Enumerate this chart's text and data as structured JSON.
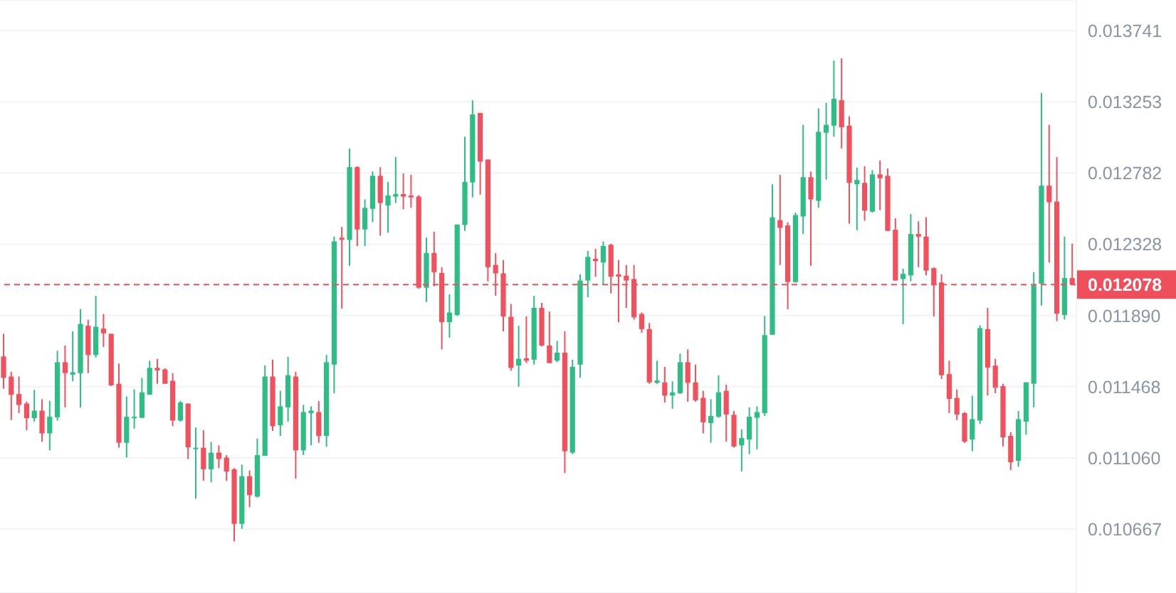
{
  "chart_data": {
    "type": "candlestick",
    "log": true,
    "grid": "y",
    "tick_labels": "y",
    "categories": [
      null,
      null,
      null,
      null,
      null,
      null,
      null,
      null,
      null,
      null,
      null,
      null,
      null,
      null,
      null,
      null,
      null,
      null,
      null,
      null,
      null,
      null,
      null,
      null,
      null,
      null,
      null,
      null,
      null,
      null,
      null,
      null,
      null,
      null,
      null,
      null,
      null,
      null,
      null,
      null,
      null,
      null,
      null,
      null,
      null,
      null,
      null,
      null,
      null,
      null,
      null,
      null,
      null,
      null,
      null,
      null,
      null,
      null,
      null,
      null,
      null,
      null,
      null,
      null,
      null,
      null,
      null,
      null,
      null,
      null,
      null,
      null,
      null,
      null,
      null,
      null,
      null,
      null,
      null,
      null,
      null,
      null,
      null,
      null,
      null,
      null,
      null,
      null,
      null,
      null,
      null,
      null,
      null,
      null,
      null,
      null,
      null,
      null,
      null,
      null,
      null,
      null,
      null,
      null,
      null,
      null,
      null,
      null,
      null,
      null,
      null,
      null,
      null,
      null,
      null,
      null,
      null,
      null,
      null,
      null,
      null,
      null,
      null,
      null,
      null,
      null,
      null,
      null,
      null,
      null,
      null,
      null,
      null,
      null,
      null,
      null,
      null,
      null,
      null,
      null
    ],
    "ylim": [
      0.010327,
      0.013956
    ],
    "yticks": [
      0.010667,
      {
        "value": 0.01106,
        "label": "0.011060"
      },
      0.011468,
      {
        "value": 0.01189,
        "label": "0.011890"
      },
      0.012328,
      0.012782,
      0.013253,
      0.013741
    ],
    "ref_lines": [
      {
        "axis": "y",
        "value": 0.012078,
        "label": "0.012078",
        "color": "#ef4f5a",
        "line_style": "dashed"
      }
    ],
    "ohlc": [
      [
        0.011645,
        0.01178,
        0.011457,
        0.011519
      ],
      [
        0.011527,
        0.011555,
        0.011275,
        0.011421
      ],
      [
        0.011425,
        0.011527,
        0.011315,
        0.011362
      ],
      [
        0.01137,
        0.011381,
        0.011217,
        0.011286
      ],
      [
        0.011286,
        0.011449,
        0.011266,
        0.011329
      ],
      [
        0.011329,
        0.011395,
        0.011152,
        0.011199
      ],
      [
        0.011199,
        0.011386,
        0.011103,
        0.011294
      ],
      [
        0.011291,
        0.011679,
        0.011272,
        0.011611
      ],
      [
        0.011611,
        0.01171,
        0.011348,
        0.011547
      ],
      [
        0.011538,
        0.011795,
        0.011499,
        0.011552
      ],
      [
        0.011547,
        0.011928,
        0.011348,
        0.011839
      ],
      [
        0.011828,
        0.011865,
        0.011547,
        0.011654
      ],
      [
        0.011654,
        0.01201,
        0.011639,
        0.011822
      ],
      [
        0.011811,
        0.011899,
        0.011702,
        0.011783
      ],
      [
        0.01178,
        0.01178,
        0.011471,
        0.011476
      ],
      [
        0.011485,
        0.011603,
        0.011118,
        0.011146
      ],
      [
        0.011146,
        0.011411,
        0.011063,
        0.011294
      ],
      [
        0.011288,
        0.011452,
        0.011226,
        0.011294
      ],
      [
        0.011288,
        0.011519,
        0.011286,
        0.011435
      ],
      [
        0.011421,
        0.01162,
        0.011421,
        0.011578
      ],
      [
        0.011578,
        0.011631,
        0.011485,
        0.011563
      ],
      [
        0.011569,
        0.011575,
        0.011485,
        0.011485
      ],
      [
        0.011502,
        0.011547,
        0.01124,
        0.011272
      ],
      [
        0.011272,
        0.011386,
        0.011266,
        0.011376
      ],
      [
        0.01137,
        0.01137,
        0.011054,
        0.01112
      ],
      [
        0.011111,
        0.011232,
        0.010834,
        0.011118
      ],
      [
        0.011118,
        0.011217,
        0.010932,
        0.010997
      ],
      [
        0.010997,
        0.01115,
        0.010924,
        0.01109
      ],
      [
        0.01109,
        0.011131,
        0.011003,
        0.011054
      ],
      [
        0.011062,
        0.011076,
        0.010932,
        0.010984
      ],
      [
        0.010997,
        0.011003,
        0.010601,
        0.010696
      ],
      [
        0.010696,
        0.011023,
        0.010669,
        0.010958
      ],
      [
        0.010958,
        0.010989,
        0.010787,
        0.010853
      ],
      [
        0.010845,
        0.011169,
        0.01084,
        0.011076
      ],
      [
        0.011072,
        0.011592,
        0.011072,
        0.011527
      ],
      [
        0.011527,
        0.011626,
        0.011213,
        0.01124
      ],
      [
        0.011245,
        0.011444,
        0.011185,
        0.011354
      ],
      [
        0.011348,
        0.011643,
        0.011266,
        0.011535
      ],
      [
        0.011527,
        0.011555,
        0.010944,
        0.011103
      ],
      [
        0.011103,
        0.011362,
        0.011076,
        0.011321
      ],
      [
        0.011315,
        0.011354,
        0.011131,
        0.011329
      ],
      [
        0.011321,
        0.011384,
        0.011146,
        0.011185
      ],
      [
        0.011185,
        0.011654,
        0.011123,
        0.011611
      ],
      [
        0.011597,
        0.012376,
        0.01143,
        0.012346
      ],
      [
        0.012369,
        0.012437,
        0.011931,
        0.012357
      ],
      [
        0.012355,
        0.012942,
        0.012194,
        0.01282
      ],
      [
        0.01282,
        0.012826,
        0.012317,
        0.012421
      ],
      [
        0.012421,
        0.012612,
        0.012317,
        0.012558
      ],
      [
        0.012552,
        0.012792,
        0.012467,
        0.012764
      ],
      [
        0.012764,
        0.01282,
        0.012382,
        0.012589
      ],
      [
        0.012573,
        0.012725,
        0.012401,
        0.012637
      ],
      [
        0.01263,
        0.012886,
        0.012589,
        0.012646
      ],
      [
        0.012646,
        0.012779,
        0.012549,
        0.01263
      ],
      [
        0.012637,
        0.01277,
        0.012558,
        0.012625
      ],
      [
        0.01263,
        0.012639,
        0.012053,
        0.012059
      ],
      [
        0.012059,
        0.012369,
        0.011972,
        0.012273
      ],
      [
        0.012273,
        0.012406,
        0.012068,
        0.012155
      ],
      [
        0.01215,
        0.012185,
        0.011687,
        0.01185
      ],
      [
        0.01185,
        0.012019,
        0.011757,
        0.011908
      ],
      [
        0.011893,
        0.012452,
        0.011887,
        0.012452
      ],
      [
        0.012449,
        0.01302,
        0.012412,
        0.012725
      ],
      [
        0.012721,
        0.013263,
        0.012625,
        0.013168
      ],
      [
        0.013178,
        0.013178,
        0.012643,
        0.012857
      ],
      [
        0.01287,
        0.01287,
        0.012098,
        0.012185
      ],
      [
        0.012199,
        0.012273,
        0.01201,
        0.012147
      ],
      [
        0.012147,
        0.012229,
        0.011795,
        0.011884
      ],
      [
        0.011882,
        0.01196,
        0.011561,
        0.011578
      ],
      [
        0.011592,
        0.011828,
        0.011468,
        0.011631
      ],
      [
        0.011634,
        0.011884,
        0.011606,
        0.01162
      ],
      [
        0.011626,
        0.01201,
        0.011597,
        0.011936
      ],
      [
        0.011936,
        0.011966,
        0.011704,
        0.01171
      ],
      [
        0.01171,
        0.011914,
        0.011606,
        0.011606
      ],
      [
        0.01162,
        0.011738,
        0.011611,
        0.011668
      ],
      [
        0.011668,
        0.011795,
        0.010976,
        0.011098
      ],
      [
        0.01109,
        0.011626,
        0.011082,
        0.011584
      ],
      [
        0.011597,
        0.012141,
        0.011521,
        0.012103
      ],
      [
        0.012103,
        0.012287,
        0.012001,
        0.012249
      ],
      [
        0.012238,
        0.0123,
        0.012127,
        0.012223
      ],
      [
        0.012214,
        0.012346,
        0.012077,
        0.012317
      ],
      [
        0.012325,
        0.012331,
        0.012024,
        0.012127
      ],
      [
        0.012141,
        0.012229,
        0.01185,
        0.012127
      ],
      [
        0.012133,
        0.012199,
        0.011936,
        0.012103
      ],
      [
        0.012112,
        0.012199,
        0.011865,
        0.011879
      ],
      [
        0.011899,
        0.011908,
        0.011786,
        0.011808
      ],
      [
        0.011808,
        0.011845,
        0.011485,
        0.011493
      ],
      [
        0.01149,
        0.01162,
        0.011485,
        0.011504
      ],
      [
        0.011493,
        0.011584,
        0.011376,
        0.011416
      ],
      [
        0.011416,
        0.011499,
        0.01134,
        0.011435
      ],
      [
        0.01143,
        0.011662,
        0.011425,
        0.011611
      ],
      [
        0.011611,
        0.011687,
        0.011381,
        0.01149
      ],
      [
        0.011493,
        0.011597,
        0.011381,
        0.011389
      ],
      [
        0.011403,
        0.011444,
        0.011199,
        0.011262
      ],
      [
        0.011258,
        0.011395,
        0.011146,
        0.011299
      ],
      [
        0.011294,
        0.011535,
        0.011288,
        0.011435
      ],
      [
        0.011444,
        0.011479,
        0.011152,
        0.011307
      ],
      [
        0.011305,
        0.011327,
        0.011118,
        0.011125
      ],
      [
        0.011131,
        0.011221,
        0.010984,
        0.011172
      ],
      [
        0.011164,
        0.011348,
        0.011082,
        0.011294
      ],
      [
        0.011288,
        0.011354,
        0.011109,
        0.011321
      ],
      [
        0.011315,
        0.011887,
        0.011299,
        0.011772
      ],
      [
        0.011774,
        0.012709,
        0.011774,
        0.012498
      ],
      [
        0.01248,
        0.01277,
        0.012199,
        0.012431
      ],
      [
        0.012446,
        0.012467,
        0.011928,
        0.012094
      ],
      [
        0.012094,
        0.012528,
        0.012089,
        0.012512
      ],
      [
        0.012503,
        0.013099,
        0.012392,
        0.012755
      ],
      [
        0.012755,
        0.012792,
        0.012194,
        0.012612
      ],
      [
        0.012603,
        0.013209,
        0.012558,
        0.013052
      ],
      [
        0.013046,
        0.013246,
        0.012739,
        0.013099
      ],
      [
        0.013093,
        0.013533,
        0.01302,
        0.013273
      ],
      [
        0.013263,
        0.013549,
        0.012942,
        0.013083
      ],
      [
        0.013093,
        0.013156,
        0.012458,
        0.012718
      ],
      [
        0.012709,
        0.012818,
        0.012416,
        0.012737
      ],
      [
        0.012718,
        0.012826,
        0.012476,
        0.01254
      ],
      [
        0.012534,
        0.012801,
        0.012528,
        0.012773
      ],
      [
        0.012773,
        0.012864,
        0.012543,
        0.012748
      ],
      [
        0.012764,
        0.012811,
        0.012412,
        0.012412
      ],
      [
        0.012419,
        0.012491,
        0.012103,
        0.012103
      ],
      [
        0.012112,
        0.012176,
        0.011837,
        0.012144
      ],
      [
        0.012135,
        0.012519,
        0.012098,
        0.012392
      ],
      [
        0.012392,
        0.012473,
        0.012185,
        0.012376
      ],
      [
        0.012376,
        0.012498,
        0.012135,
        0.012164
      ],
      [
        0.012179,
        0.012185,
        0.011884,
        0.012077
      ],
      [
        0.012091,
        0.012141,
        0.011513,
        0.011535
      ],
      [
        0.011541,
        0.01162,
        0.011315,
        0.011397
      ],
      [
        0.011403,
        0.011452,
        0.011275,
        0.011307
      ],
      [
        0.011315,
        0.011321,
        0.011146,
        0.011152
      ],
      [
        0.011164,
        0.011416,
        0.011098,
        0.01128
      ],
      [
        0.011272,
        0.011831,
        0.011253,
        0.011814
      ],
      [
        0.011808,
        0.011936,
        0.011416,
        0.01158
      ],
      [
        0.011591,
        0.011631,
        0.01143,
        0.011462
      ],
      [
        0.011471,
        0.011485,
        0.011125,
        0.011177
      ],
      [
        0.011185,
        0.011207,
        0.010992,
        0.011036
      ],
      [
        0.011044,
        0.011327,
        0.01101,
        0.01128
      ],
      [
        0.011266,
        0.011493,
        0.011191,
        0.011493
      ],
      [
        0.011485,
        0.012155,
        0.011348,
        0.012074
      ],
      [
        0.012083,
        0.013312,
        0.011951,
        0.0127
      ],
      [
        0.0127,
        0.013099,
        0.012214,
        0.012594
      ],
      [
        0.012598,
        0.012886,
        0.011856,
        0.011901
      ],
      [
        0.011893,
        0.012376,
        0.011865,
        0.012118
      ],
      [
        0.012118,
        0.012331,
        0.012078,
        0.012078
      ]
    ],
    "colors": [
      "#f0515c",
      "#f0515c",
      "#f0515c",
      "#f0515c",
      "#2ebd85",
      "#f0515c",
      "#2ebd85",
      "#2ebd85",
      "#f0515c",
      "#2ebd85",
      "#2ebd85",
      "#f0515c",
      "#2ebd85",
      "#f0515c",
      "#f0515c",
      "#f0515c",
      "#2ebd85",
      "#2ebd85",
      "#2ebd85",
      "#2ebd85",
      "#f0515c",
      "#f0515c",
      "#f0515c",
      "#2ebd85",
      "#f0515c",
      "#2ebd85",
      "#f0515c",
      "#2ebd85",
      "#f0515c",
      "#f0515c",
      "#f0515c",
      "#2ebd85",
      "#f0515c",
      "#2ebd85",
      "#2ebd85",
      "#f0515c",
      "#2ebd85",
      "#2ebd85",
      "#f0515c",
      "#2ebd85",
      "#2ebd85",
      "#f0515c",
      "#2ebd85",
      "#2ebd85",
      "#f0515c",
      "#2ebd85",
      "#f0515c",
      "#2ebd85",
      "#2ebd85",
      "#f0515c",
      "#2ebd85",
      "#2ebd85",
      "#f0515c",
      "#f0515c",
      "#f0515c",
      "#2ebd85",
      "#f0515c",
      "#f0515c",
      "#2ebd85",
      "#2ebd85",
      "#2ebd85",
      "#2ebd85",
      "#f0515c",
      "#f0515c",
      "#f0515c",
      "#f0515c",
      "#f0515c",
      "#2ebd85",
      "#f0515c",
      "#2ebd85",
      "#f0515c",
      "#f0515c",
      "#2ebd85",
      "#f0515c",
      "#2ebd85",
      "#2ebd85",
      "#2ebd85",
      "#f0515c",
      "#2ebd85",
      "#f0515c",
      "#f0515c",
      "#f0515c",
      "#f0515c",
      "#f0515c",
      "#f0515c",
      "#2ebd85",
      "#f0515c",
      "#2ebd85",
      "#2ebd85",
      "#f0515c",
      "#f0515c",
      "#f0515c",
      "#2ebd85",
      "#2ebd85",
      "#f0515c",
      "#f0515c",
      "#2ebd85",
      "#2ebd85",
      "#2ebd85",
      "#2ebd85",
      "#2ebd85",
      "#f0515c",
      "#f0515c",
      "#2ebd85",
      "#2ebd85",
      "#f0515c",
      "#2ebd85",
      "#2ebd85",
      "#2ebd85",
      "#f0515c",
      "#f0515c",
      "#2ebd85",
      "#f0515c",
      "#2ebd85",
      "#f0515c",
      "#f0515c",
      "#f0515c",
      "#2ebd85",
      "#2ebd85",
      "#f0515c",
      "#f0515c",
      "#f0515c",
      "#f0515c",
      "#f0515c",
      "#f0515c",
      "#f0515c",
      "#2ebd85",
      "#2ebd85",
      "#f0515c",
      "#f0515c",
      "#f0515c",
      "#f0515c",
      "#2ebd85",
      "#2ebd85",
      "#2ebd85",
      "#2ebd85",
      "#f0515c",
      "#f0515c",
      "#2ebd85",
      "#f0515c"
    ]
  }
}
